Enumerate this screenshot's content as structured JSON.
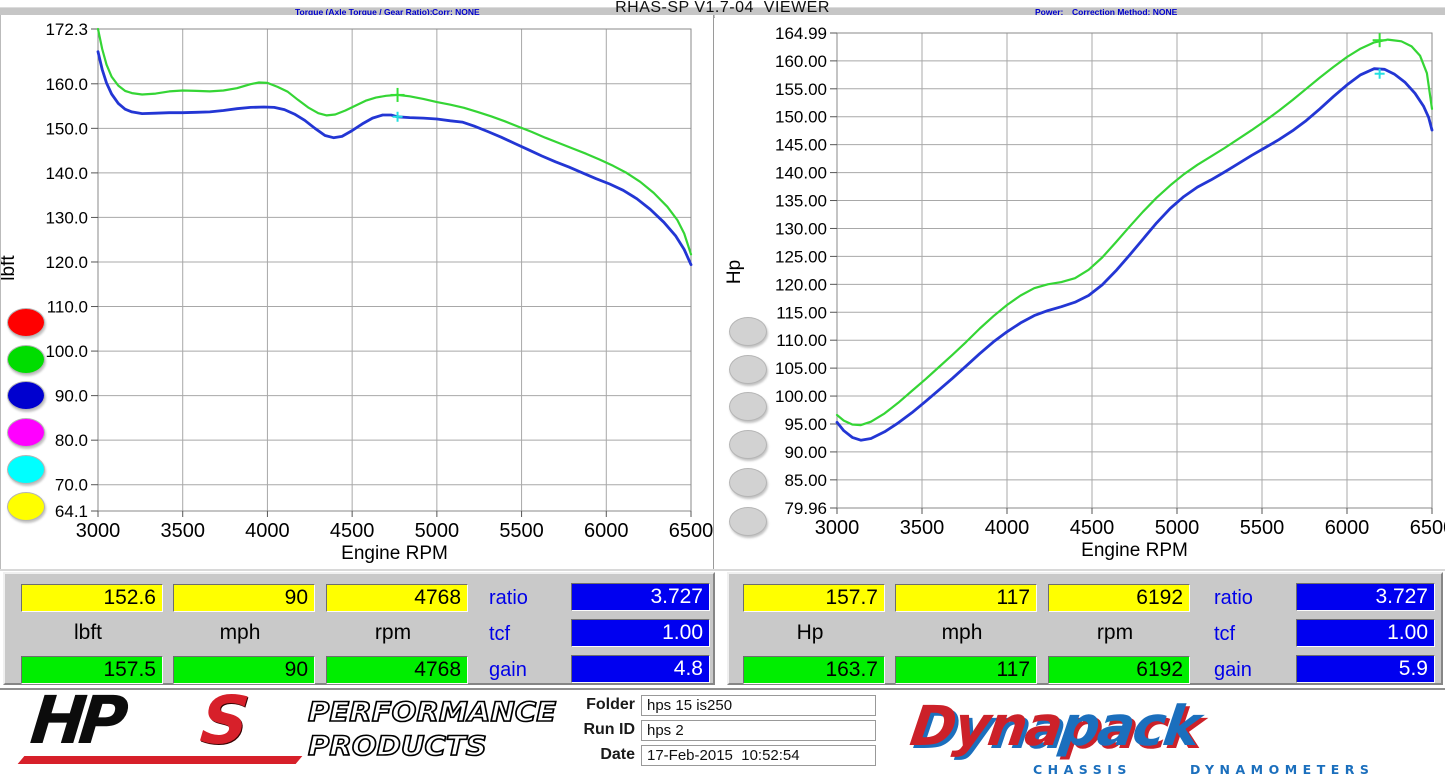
{
  "header": {
    "title": "RHAS-SP V1.7-04  VIEWER",
    "torque_label": "Torque (Axle Torque / Gear Ratio):",
    "torque_corr": "Corr: NONE",
    "power_label": "Power:",
    "power_corr": "Correction Method: NONE"
  },
  "colors": {
    "curve_green": "#35d535",
    "curve_blue": "#2336d4",
    "marker_cyan": "#22e0e0",
    "marker_green": "#35e035",
    "cell_yellow": "#ffff00",
    "cell_green": "#00ee00",
    "cell_blue": "#0000f0",
    "label_blue": "#0000e8",
    "grid_gray": "#a8a8a8"
  },
  "legend": {
    "left_colors": [
      "#ff0000",
      "#00dd00",
      "#0000cf",
      "#ff00ff",
      "#00ffff",
      "#ffff00"
    ],
    "right_colors": [
      "#d2d2d2",
      "#d2d2d2",
      "#d2d2d2",
      "#d2d2d2",
      "#d2d2d2",
      "#d2d2d2"
    ]
  },
  "chart_data": [
    {
      "type": "line",
      "title": "",
      "xlabel": "Engine RPM",
      "ylabel": "lbft",
      "xlim": [
        3000,
        6500
      ],
      "ylim": [
        64.1,
        172.3
      ],
      "grid": true,
      "xticks": [
        3000,
        3500,
        4000,
        4500,
        5000,
        5500,
        6000,
        6500
      ],
      "yticks": [
        172.3,
        160,
        150,
        140,
        130,
        120,
        110,
        100,
        90,
        80,
        70,
        64.1
      ],
      "ytick_labels": [
        "172.3",
        "160.0",
        "150.0",
        "140.0",
        "130.0",
        "120.0",
        "110.0",
        "100.0",
        "90.0",
        "80.0",
        "70.0",
        "64.1"
      ],
      "series": [
        {
          "name": "torque-run-green",
          "color": "#35d535",
          "marker": {
            "x": 4768,
            "y": 157.5,
            "color": "#35e035",
            "size": 7
          },
          "points": [
            [
              3000,
              172.3
            ],
            [
              3025,
              167.8
            ],
            [
              3050,
              164.3
            ],
            [
              3080,
              161.6
            ],
            [
              3120,
              159.6
            ],
            [
              3160,
              158.4
            ],
            [
              3200,
              157.9
            ],
            [
              3260,
              157.6
            ],
            [
              3340,
              157.8
            ],
            [
              3420,
              158.3
            ],
            [
              3500,
              158.5
            ],
            [
              3580,
              158.4
            ],
            [
              3660,
              158.3
            ],
            [
              3740,
              158.5
            ],
            [
              3820,
              159.0
            ],
            [
              3900,
              159.9
            ],
            [
              3950,
              160.3
            ],
            [
              4000,
              160.2
            ],
            [
              4060,
              159.3
            ],
            [
              4120,
              158.2
            ],
            [
              4180,
              156.4
            ],
            [
              4240,
              154.7
            ],
            [
              4300,
              153.4
            ],
            [
              4350,
              152.9
            ],
            [
              4400,
              153.1
            ],
            [
              4460,
              154.0
            ],
            [
              4520,
              155.1
            ],
            [
              4580,
              156.2
            ],
            [
              4640,
              156.9
            ],
            [
              4700,
              157.3
            ],
            [
              4768,
              157.5
            ],
            [
              4840,
              157.2
            ],
            [
              4920,
              156.6
            ],
            [
              5000,
              155.9
            ],
            [
              5080,
              155.3
            ],
            [
              5160,
              154.6
            ],
            [
              5240,
              153.7
            ],
            [
              5320,
              152.7
            ],
            [
              5400,
              151.6
            ],
            [
              5480,
              150.4
            ],
            [
              5560,
              149.2
            ],
            [
              5640,
              147.9
            ],
            [
              5720,
              146.7
            ],
            [
              5800,
              145.5
            ],
            [
              5880,
              144.3
            ],
            [
              5960,
              143.0
            ],
            [
              6040,
              141.6
            ],
            [
              6120,
              140.0
            ],
            [
              6200,
              138.0
            ],
            [
              6280,
              135.5
            ],
            [
              6360,
              132.4
            ],
            [
              6420,
              129.4
            ],
            [
              6460,
              126.4
            ],
            [
              6500,
              121.7
            ]
          ]
        },
        {
          "name": "torque-run-blue",
          "color": "#2336d4",
          "marker": {
            "x": 4768,
            "y": 152.6,
            "color": "#22e0e0",
            "size": 5
          },
          "points": [
            [
              3000,
              167.2
            ],
            [
              3025,
              163.2
            ],
            [
              3050,
              160.2
            ],
            [
              3080,
              157.7
            ],
            [
              3120,
              155.6
            ],
            [
              3160,
              154.3
            ],
            [
              3200,
              153.7
            ],
            [
              3260,
              153.3
            ],
            [
              3340,
              153.4
            ],
            [
              3420,
              153.5
            ],
            [
              3500,
              153.5
            ],
            [
              3580,
              153.6
            ],
            [
              3660,
              153.7
            ],
            [
              3740,
              154.0
            ],
            [
              3820,
              154.4
            ],
            [
              3900,
              154.7
            ],
            [
              3980,
              154.8
            ],
            [
              4040,
              154.7
            ],
            [
              4100,
              154.2
            ],
            [
              4160,
              153.2
            ],
            [
              4220,
              151.8
            ],
            [
              4280,
              150.0
            ],
            [
              4340,
              148.4
            ],
            [
              4390,
              147.9
            ],
            [
              4440,
              148.2
            ],
            [
              4500,
              149.5
            ],
            [
              4560,
              151.0
            ],
            [
              4620,
              152.3
            ],
            [
              4680,
              153.0
            ],
            [
              4730,
              153.0
            ],
            [
              4768,
              152.6
            ],
            [
              4840,
              152.4
            ],
            [
              4920,
              152.3
            ],
            [
              5000,
              152.1
            ],
            [
              5080,
              151.7
            ],
            [
              5150,
              151.4
            ],
            [
              5220,
              150.5
            ],
            [
              5300,
              149.3
            ],
            [
              5380,
              148.0
            ],
            [
              5460,
              146.6
            ],
            [
              5540,
              145.2
            ],
            [
              5620,
              143.8
            ],
            [
              5700,
              142.5
            ],
            [
              5780,
              141.3
            ],
            [
              5860,
              140.0
            ],
            [
              5940,
              138.7
            ],
            [
              6020,
              137.5
            ],
            [
              6100,
              136.1
            ],
            [
              6180,
              134.2
            ],
            [
              6260,
              131.8
            ],
            [
              6340,
              128.9
            ],
            [
              6410,
              125.8
            ],
            [
              6460,
              122.8
            ],
            [
              6500,
              119.4
            ]
          ]
        }
      ]
    },
    {
      "type": "line",
      "title": "",
      "xlabel": "Engine RPM",
      "ylabel": "Hp",
      "xlim": [
        3000,
        6500
      ],
      "ylim": [
        79.96,
        164.99
      ],
      "grid": true,
      "xticks": [
        3000,
        3500,
        4000,
        4500,
        5000,
        5500,
        6000,
        6500
      ],
      "yticks": [
        164.99,
        160,
        155,
        150,
        145,
        140,
        135,
        130,
        125,
        120,
        115,
        110,
        105,
        100,
        95,
        90,
        85,
        79.96
      ],
      "ytick_labels": [
        "164.99",
        "160.00",
        "155.00",
        "150.00",
        "145.00",
        "140.00",
        "135.00",
        "130.00",
        "125.00",
        "120.00",
        "115.00",
        "110.00",
        "105.00",
        "100.00",
        "95.00",
        "90.00",
        "85.00",
        "79.96"
      ],
      "series": [
        {
          "name": "power-run-green",
          "color": "#35d535",
          "marker": {
            "x": 6192,
            "y": 163.7,
            "color": "#35e035",
            "size": 7
          },
          "points": [
            [
              3000,
              96.6
            ],
            [
              3040,
              95.6
            ],
            [
              3090,
              94.9
            ],
            [
              3140,
              94.8
            ],
            [
              3200,
              95.4
            ],
            [
              3280,
              96.9
            ],
            [
              3360,
              98.8
            ],
            [
              3440,
              100.9
            ],
            [
              3520,
              103.0
            ],
            [
              3600,
              105.2
            ],
            [
              3680,
              107.4
            ],
            [
              3760,
              109.7
            ],
            [
              3840,
              112.1
            ],
            [
              3920,
              114.3
            ],
            [
              4000,
              116.3
            ],
            [
              4080,
              118.0
            ],
            [
              4160,
              119.3
            ],
            [
              4240,
              120.0
            ],
            [
              4320,
              120.4
            ],
            [
              4400,
              121.1
            ],
            [
              4480,
              122.6
            ],
            [
              4560,
              124.8
            ],
            [
              4640,
              127.5
            ],
            [
              4720,
              130.3
            ],
            [
              4800,
              133.0
            ],
            [
              4880,
              135.5
            ],
            [
              4960,
              137.7
            ],
            [
              5040,
              139.7
            ],
            [
              5120,
              141.4
            ],
            [
              5200,
              142.9
            ],
            [
              5280,
              144.4
            ],
            [
              5360,
              146.0
            ],
            [
              5440,
              147.6
            ],
            [
              5520,
              149.3
            ],
            [
              5600,
              151.1
            ],
            [
              5680,
              153.0
            ],
            [
              5760,
              155.0
            ],
            [
              5840,
              157.0
            ],
            [
              5920,
              158.9
            ],
            [
              6000,
              160.7
            ],
            [
              6080,
              162.2
            ],
            [
              6160,
              163.3
            ],
            [
              6240,
              163.8
            ],
            [
              6320,
              163.5
            ],
            [
              6380,
              162.6
            ],
            [
              6430,
              160.9
            ],
            [
              6470,
              157.8
            ],
            [
              6500,
              151.4
            ]
          ]
        },
        {
          "name": "power-run-blue",
          "color": "#2336d4",
          "marker": {
            "x": 6192,
            "y": 157.7,
            "color": "#22e0e0",
            "size": 5
          },
          "points": [
            [
              3000,
              95.3
            ],
            [
              3040,
              93.8
            ],
            [
              3090,
              92.6
            ],
            [
              3140,
              92.1
            ],
            [
              3200,
              92.4
            ],
            [
              3280,
              93.6
            ],
            [
              3360,
              95.2
            ],
            [
              3440,
              97.0
            ],
            [
              3520,
              99.0
            ],
            [
              3600,
              101.1
            ],
            [
              3680,
              103.2
            ],
            [
              3760,
              105.4
            ],
            [
              3840,
              107.6
            ],
            [
              3920,
              109.7
            ],
            [
              4000,
              111.5
            ],
            [
              4080,
              113.1
            ],
            [
              4160,
              114.4
            ],
            [
              4240,
              115.3
            ],
            [
              4320,
              116.0
            ],
            [
              4400,
              116.8
            ],
            [
              4480,
              118.0
            ],
            [
              4560,
              119.9
            ],
            [
              4640,
              122.4
            ],
            [
              4720,
              125.2
            ],
            [
              4800,
              128.1
            ],
            [
              4880,
              131.0
            ],
            [
              4960,
              133.6
            ],
            [
              5040,
              135.7
            ],
            [
              5120,
              137.4
            ],
            [
              5200,
              138.7
            ],
            [
              5280,
              140.1
            ],
            [
              5360,
              141.6
            ],
            [
              5440,
              143.1
            ],
            [
              5520,
              144.5
            ],
            [
              5600,
              145.9
            ],
            [
              5680,
              147.5
            ],
            [
              5760,
              149.3
            ],
            [
              5840,
              151.4
            ],
            [
              5920,
              153.6
            ],
            [
              6000,
              155.7
            ],
            [
              6080,
              157.5
            ],
            [
              6160,
              158.6
            ],
            [
              6220,
              158.5
            ],
            [
              6280,
              157.6
            ],
            [
              6340,
              156.2
            ],
            [
              6400,
              154.2
            ],
            [
              6450,
              151.9
            ],
            [
              6480,
              149.9
            ],
            [
              6500,
              147.6
            ]
          ]
        }
      ]
    }
  ],
  "torque_panel": {
    "cursor": [
      "152.6",
      "90",
      "4768"
    ],
    "units": [
      "lbft",
      "mph",
      "rpm"
    ],
    "reference": [
      "157.5",
      "90",
      "4768"
    ],
    "ratio_label": "ratio",
    "ratio_value": "3.727",
    "tcf_label": "tcf",
    "tcf_value": "1.00",
    "gain_label": "gain",
    "gain_value": "4.8"
  },
  "power_panel": {
    "cursor": [
      "157.7",
      "117",
      "6192"
    ],
    "units": [
      "Hp",
      "mph",
      "rpm"
    ],
    "reference": [
      "163.7",
      "117",
      "6192"
    ],
    "ratio_label": "ratio",
    "ratio_value": "3.727",
    "tcf_label": "tcf",
    "tcf_value": "1.00",
    "gain_label": "gain",
    "gain_value": "5.9"
  },
  "footer": {
    "fields": [
      {
        "label": "Folder",
        "value": "hps 15 is250"
      },
      {
        "label": "Run ID",
        "value": "hps 2"
      },
      {
        "label": "Date",
        "value": "17-Feb-2015  10:52:54"
      }
    ],
    "hps_logo": {
      "hp": "HP",
      "s": "S",
      "line1": "PERFORMANCE",
      "line2": "PRODUCTS"
    },
    "dynapack_logo": {
      "part1": "Dyna",
      "part2": "pack",
      "sub1": "CHASSIS",
      "sub2": "DYNAMOMETERS"
    }
  }
}
